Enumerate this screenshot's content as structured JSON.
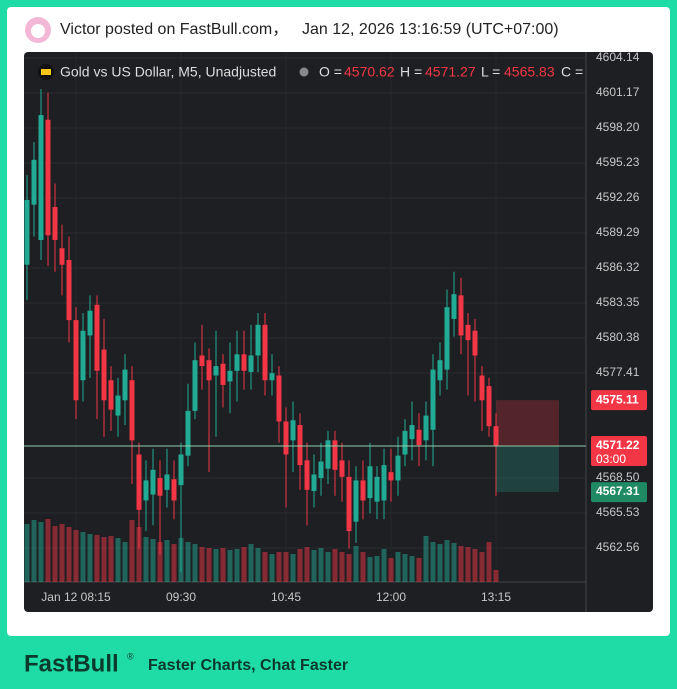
{
  "header": {
    "author_text": "Victor posted on FastBull.com，",
    "timestamp": "Jan 12, 2026 13:16:59 (UTC+07:00)"
  },
  "chart_data": {
    "type": "candlestick",
    "title": "Gold vs US Dollar, M5, Unadjusted",
    "legend": {
      "o_label": "O =",
      "o": 4570.62,
      "h_label": "H =",
      "h": 4571.27,
      "l_label": "L =",
      "l": 4565.83,
      "c_label": "C ="
    },
    "categories": [
      null,
      null,
      null,
      null,
      null,
      null,
      null,
      "Jan 12 08:15",
      null,
      null,
      null,
      null,
      null,
      null,
      null,
      null,
      null,
      null,
      null,
      null,
      null,
      null,
      "09:30",
      null,
      null,
      null,
      null,
      null,
      null,
      null,
      null,
      null,
      null,
      null,
      null,
      null,
      null,
      "10:45",
      null,
      null,
      null,
      null,
      null,
      null,
      null,
      null,
      null,
      null,
      null,
      null,
      null,
      null,
      "12:00",
      null,
      null,
      null,
      null,
      null,
      null,
      null,
      null,
      null,
      null,
      null,
      null,
      null,
      null,
      "13:15"
    ],
    "open": [
      4586.6,
      4591.7,
      4588.7,
      4598.9,
      4591.5,
      4588,
      4587,
      4581.9,
      4576.8,
      4580.6,
      4583.2,
      4579.4,
      4576.8,
      4573.8,
      4575.1,
      4576.8,
      4570.5,
      4566.6,
      4567.1,
      4568.5,
      4567.5,
      4568.4,
      4567.9,
      4570.4,
      4574.2,
      4578.9,
      4578.5,
      4577.2,
      4578.2,
      4576.7,
      4577.6,
      4579,
      4577.5,
      4578.9,
      4581.5,
      4576.8,
      4577.2,
      4573.3,
      4571.7,
      4573,
      4570,
      4567.4,
      4568.5,
      4569.3,
      4571.7,
      4570,
      4568.6,
      4564.8,
      4568.3,
      4566.8,
      4566.5,
      4566.6,
      4569,
      4568.3,
      4570.5,
      4571.8,
      4572.6,
      4571.7,
      4572.6,
      4576.8,
      4577.7,
      4582,
      4584,
      4581.5,
      4581,
      4577.2,
      4576.3,
      4572.9
    ],
    "high": [
      4594.2,
      4597,
      4601.5,
      4601.2,
      4593.5,
      4590,
      4589,
      4583,
      4582.5,
      4584,
      4584,
      4582,
      4578,
      4577,
      4579,
      4578,
      4571.5,
      4570,
      4571,
      4570,
      4571,
      4570,
      4571.5,
      4576.5,
      4580,
      4581.5,
      4579.5,
      4581,
      4579,
      4580,
      4581,
      4581,
      4581.5,
      4582.5,
      4582.5,
      4579,
      4578,
      4574.5,
      4575,
      4574,
      4571.5,
      4570.5,
      4571.5,
      4572.5,
      4572.5,
      4571.5,
      4570,
      4569.5,
      4570,
      4571.5,
      4569.5,
      4571,
      4571,
      4572,
      4573.5,
      4575,
      4574,
      4575,
      4579,
      4580,
      4584.5,
      4586,
      4585.5,
      4582.5,
      4582,
      4578,
      4577,
      4574
    ],
    "low": [
      4583.6,
      4589,
      4587,
      4586.5,
      4586,
      4584,
      4580,
      4573.5,
      4575,
      4577,
      4573.5,
      4572,
      4572.5,
      4572,
      4573,
      4568,
      4562.5,
      4564,
      4564.5,
      4562,
      4566,
      4565,
      4560.5,
      4569.5,
      4573.5,
      4576,
      4569,
      4572,
      4574.5,
      4574,
      4575,
      4576,
      4576,
      4577.5,
      4575.5,
      4575.5,
      4571.5,
      4566,
      4569,
      4567.5,
      4564.5,
      4566,
      4567,
      4568,
      4567,
      4566.5,
      4562.5,
      4563,
      4565,
      4565.5,
      4565,
      4565,
      4566.5,
      4567,
      4569.5,
      4570,
      4569.5,
      4570,
      4569.5,
      4575.5,
      4576,
      4580.5,
      4579,
      4575.5,
      4575,
      4572.5,
      4572,
      4567
    ],
    "close": [
      4592.1,
      4595.5,
      4599.3,
      4589.1,
      4588.7,
      4586.6,
      4581.9,
      4575.1,
      4581,
      4582.7,
      4577.6,
      4575.1,
      4574.3,
      4575.5,
      4577.7,
      4571.7,
      4565.8,
      4568.3,
      4569.2,
      4567,
      4568.8,
      4566.6,
      4570.5,
      4574.2,
      4578.5,
      4578,
      4576.8,
      4578,
      4576.4,
      4577.6,
      4579,
      4577.6,
      4578.9,
      4581.5,
      4576.8,
      4577.4,
      4573.3,
      4570.5,
      4573.4,
      4569.6,
      4567.5,
      4568.8,
      4569.9,
      4571.7,
      4569.2,
      4568.6,
      4564,
      4568.3,
      4566.6,
      4569.5,
      4568.6,
      4569.6,
      4568.3,
      4570.4,
      4572.5,
      4573,
      4571.3,
      4573.8,
      4577.7,
      4578.5,
      4583,
      4584.1,
      4580.6,
      4580.2,
      4578.9,
      4575.1,
      4572.9,
      4571.2
    ],
    "volume": [
      58,
      62,
      60,
      63,
      56,
      58,
      55,
      52,
      50,
      48,
      47,
      45,
      46,
      44,
      40,
      62,
      55,
      45,
      43,
      40,
      42,
      38,
      44,
      40,
      38,
      35,
      34,
      33,
      34,
      32,
      33,
      35,
      38,
      34,
      30,
      28,
      30,
      30,
      28,
      33,
      35,
      32,
      34,
      30,
      33,
      30,
      28,
      36,
      30,
      25,
      26,
      33,
      24,
      30,
      28,
      26,
      24,
      46,
      40,
      38,
      42,
      39,
      36,
      35,
      33,
      30,
      40,
      12
    ],
    "up_color": "#22ab94",
    "down_color": "#f23645",
    "ylim": [
      4559.68,
      4604.65
    ],
    "yticks": [
      4604.14,
      4601.17,
      {
        "value": 4598.2,
        "label": "4598.20"
      },
      4595.23,
      4592.26,
      4589.29,
      4586.32,
      4583.35,
      4580.38,
      4577.41,
      {
        "value": 4568.5,
        "label": "4568.50"
      },
      4565.53,
      4562.56
    ],
    "grid": true,
    "markers": {
      "upper": 4575.11,
      "last_price": 4571.22,
      "countdown": "03:00",
      "lower": 4567.31
    }
  },
  "footer": {
    "brand": "FastBull",
    "brand_mark": "®",
    "tagline": "Faster Charts, Chat Faster"
  }
}
